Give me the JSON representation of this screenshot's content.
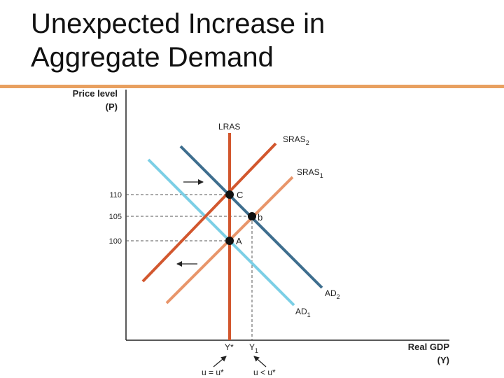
{
  "slide": {
    "title_line1": "Unexpected Increase in",
    "title_line2": "Aggregate Demand"
  },
  "diagram": {
    "y_axis_label_line1": "Price level",
    "y_axis_label_line2": "(P)",
    "x_axis_label_line1": "Real GDP",
    "x_axis_label_line2": "(Y)",
    "price_ticks": [
      "110",
      "105",
      "100"
    ],
    "curves": {
      "lras": "LRAS",
      "sras2_base": "SRAS",
      "sras2_sub": "2",
      "sras1_base": "SRAS",
      "sras1_sub": "1",
      "ad2_base": "AD",
      "ad2_sub": "2",
      "ad1_base": "AD",
      "ad1_sub": "1"
    },
    "points": {
      "c": "C",
      "b": "b",
      "a": "A"
    },
    "output_labels": {
      "ystar": "Y*",
      "y1_base": "Y",
      "y1_sub": "1"
    },
    "unemployment_labels": {
      "natural": "u = u*",
      "below": "u < u*"
    },
    "colors": {
      "lras": "#D2572E",
      "sras2": "#D2572E",
      "sras1": "#E8956A",
      "ad2": "#3E6E8E",
      "ad1": "#7CCFE6",
      "axis": "#222222"
    }
  }
}
